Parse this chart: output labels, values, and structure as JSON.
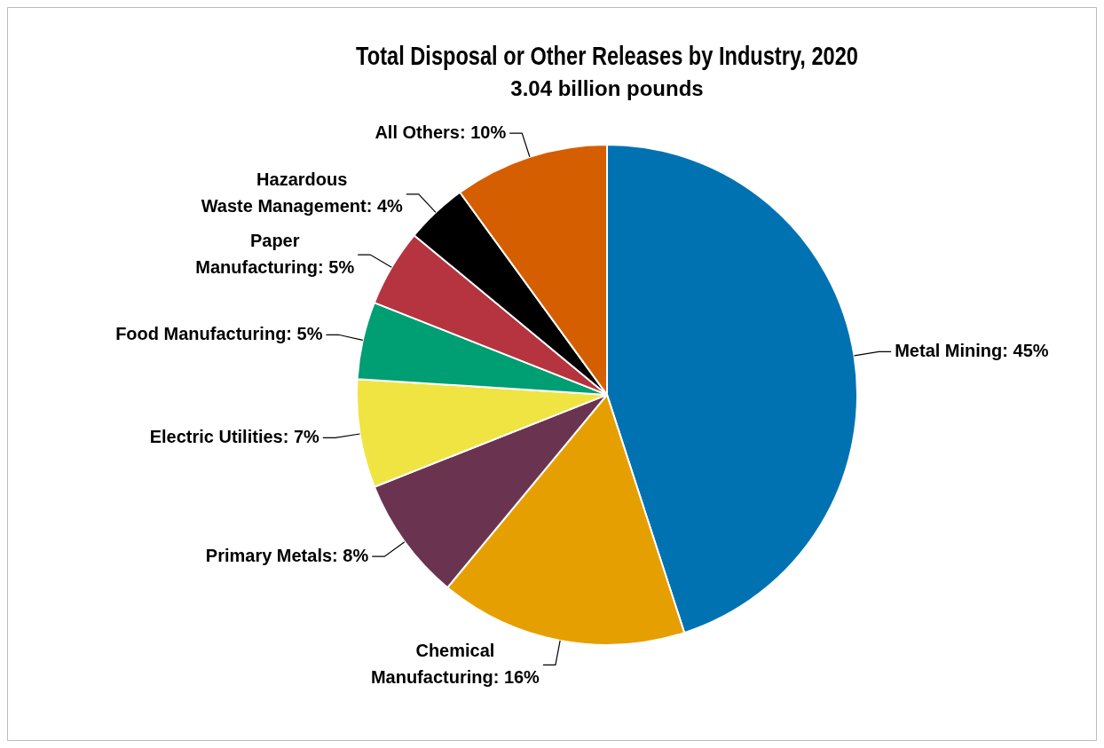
{
  "chart_data": {
    "type": "pie",
    "title": "Total Disposal or Other Releases by Industry, 2020",
    "subtitle": "3.04 billion pounds",
    "categories": [
      "Metal Mining",
      "Chemical Manufacturing",
      "Primary Metals",
      "Electric Utilities",
      "Food Manufacturing",
      "Paper Manufacturing",
      "Hazardous Waste Management",
      "All Others"
    ],
    "values": [
      45,
      16,
      8,
      7,
      5,
      5,
      4,
      10
    ],
    "colors": [
      "#0072b2",
      "#e69f00",
      "#6a3451",
      "#f0e442",
      "#009e73",
      "#b5343f",
      "#000000",
      "#d55e00"
    ],
    "value_labels": [
      "45%",
      "16%",
      "8%",
      "7%",
      "5%",
      "5%",
      "4%",
      "10%"
    ]
  }
}
